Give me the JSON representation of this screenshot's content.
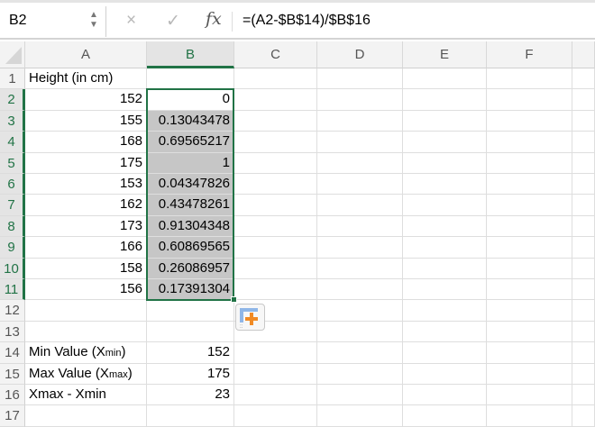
{
  "formula_bar": {
    "name_box": "B2",
    "cancel_icon": "×",
    "enter_icon": "✓",
    "fx_label": "fx",
    "formula": "=(A2-$B$14)/$B$16"
  },
  "columns": [
    "A",
    "B",
    "C",
    "D",
    "E",
    "F"
  ],
  "selected_column": "B",
  "rows": [
    {
      "n": "1",
      "a": "Height (in cm)",
      "b": ""
    },
    {
      "n": "2",
      "a": "152",
      "b": "0"
    },
    {
      "n": "3",
      "a": "155",
      "b": "0.13043478"
    },
    {
      "n": "4",
      "a": "168",
      "b": "0.69565217"
    },
    {
      "n": "5",
      "a": "175",
      "b": "1"
    },
    {
      "n": "6",
      "a": "153",
      "b": "0.04347826"
    },
    {
      "n": "7",
      "a": "162",
      "b": "0.43478261"
    },
    {
      "n": "8",
      "a": "173",
      "b": "0.91304348"
    },
    {
      "n": "9",
      "a": "166",
      "b": "0.60869565"
    },
    {
      "n": "10",
      "a": "158",
      "b": "0.26086957"
    },
    {
      "n": "11",
      "a": "156",
      "b": "0.17391304"
    },
    {
      "n": "12",
      "a": "",
      "b": ""
    },
    {
      "n": "13",
      "a": "",
      "b": ""
    },
    {
      "n": "14",
      "a": "Min Value (X",
      "a_sub": "min",
      "a_end": ")",
      "b": "152"
    },
    {
      "n": "15",
      "a": "Max Value (X",
      "a_sub": "max",
      "a_end": ")",
      "b": "175"
    },
    {
      "n": "16",
      "a": "Xmax - Xmin",
      "b": "23"
    },
    {
      "n": "17",
      "a": "",
      "b": ""
    }
  ],
  "selection": "B2:B11",
  "colors": {
    "accent": "#217346",
    "highlight": "#c6c6c6"
  },
  "paste_options_icon": "paste-options"
}
